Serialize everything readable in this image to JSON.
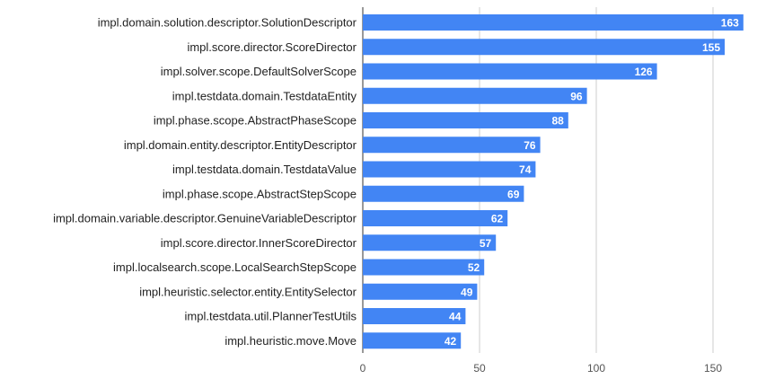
{
  "chart_data": {
    "type": "bar",
    "orientation": "horizontal",
    "categories": [
      "impl.domain.solution.descriptor.SolutionDescriptor",
      "impl.score.director.ScoreDirector",
      "impl.solver.scope.DefaultSolverScope",
      "impl.testdata.domain.TestdataEntity",
      "impl.phase.scope.AbstractPhaseScope",
      "impl.domain.entity.descriptor.EntityDescriptor",
      "impl.testdata.domain.TestdataValue",
      "impl.phase.scope.AbstractStepScope",
      "impl.domain.variable.descriptor.GenuineVariableDescriptor",
      "impl.score.director.InnerScoreDirector",
      "impl.localsearch.scope.LocalSearchStepScope",
      "impl.heuristic.selector.entity.EntitySelector",
      "impl.testdata.util.PlannerTestUtils",
      "impl.heuristic.move.Move"
    ],
    "values": [
      163,
      155,
      126,
      96,
      88,
      76,
      74,
      69,
      62,
      57,
      52,
      49,
      44,
      42
    ],
    "xticks": [
      0,
      50,
      100,
      150
    ],
    "xlim": [
      0,
      163
    ],
    "grid": true,
    "legend": "none",
    "data_labels": true,
    "colors": {
      "bar": "#4285f4",
      "grid": "#cccccc",
      "axis": "#333333"
    }
  }
}
